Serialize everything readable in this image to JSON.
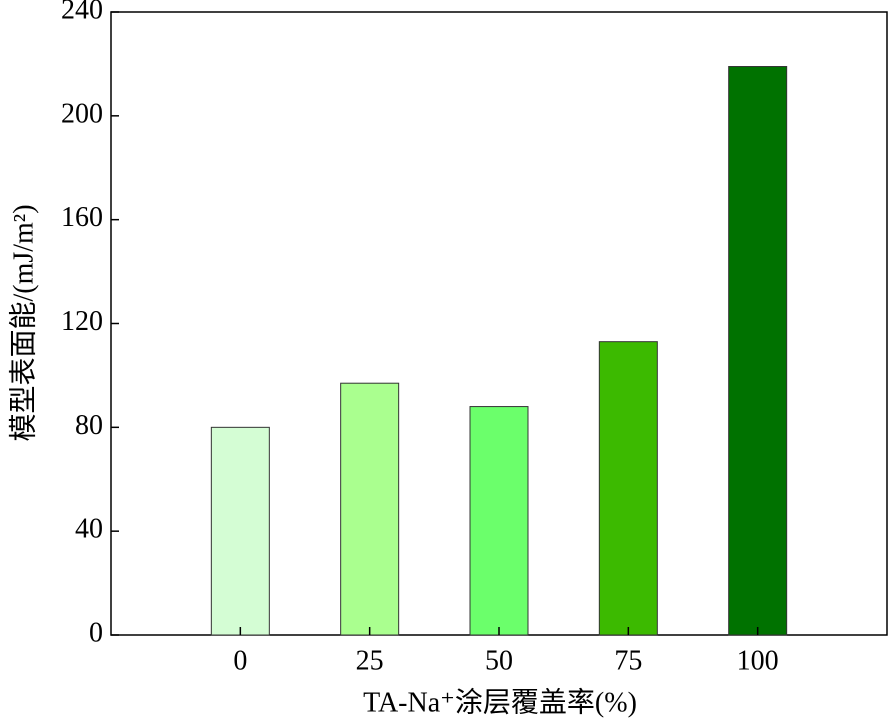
{
  "chart_data": {
    "type": "bar",
    "xlabel": "TA-Na⁺涂层覆盖率(%)",
    "ylabel": "模型表面能/(mJ/m²)",
    "categories": [
      "0",
      "25",
      "50",
      "75",
      "100"
    ],
    "values": [
      80,
      97,
      88,
      113,
      219
    ],
    "colors": [
      "#d4fdd4",
      "#aaff8f",
      "#6bff6b",
      "#3cba00",
      "#007200"
    ],
    "ylim": [
      0,
      240
    ],
    "yticks": [
      0,
      40,
      80,
      120,
      160,
      200,
      240
    ],
    "grid": false
  }
}
